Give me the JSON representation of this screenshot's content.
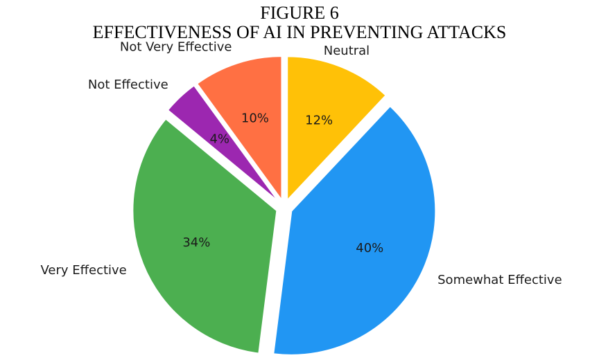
{
  "figure": {
    "title_line_1": "FIGURE 6",
    "title_line_2": "EFFECTIVENESS OF AI IN PREVENTING ATTACKS"
  },
  "chart_data": {
    "type": "pie",
    "title": "FIGURE 6 EFFECTIVENESS OF AI IN PREVENTING ATTACKS",
    "slices": [
      {
        "label": "Neutral",
        "value": 12,
        "display": "12%",
        "color": "#FFC107",
        "exploded": true
      },
      {
        "label": "Somewhat Effective",
        "value": 40,
        "display": "40%",
        "color": "#2196F3",
        "exploded": true
      },
      {
        "label": "Very Effective",
        "value": 34,
        "display": "34%",
        "color": "#4CAF50",
        "exploded": true
      },
      {
        "label": "Not Effective",
        "value": 4,
        "display": "4%",
        "color": "#9C27B0",
        "exploded": true
      },
      {
        "label": "Not Very Effective",
        "value": 10,
        "display": "10%",
        "color": "#FF7043",
        "exploded": true
      }
    ],
    "start_angle_deg": 90,
    "direction": "clockwise",
    "legend": "none"
  }
}
